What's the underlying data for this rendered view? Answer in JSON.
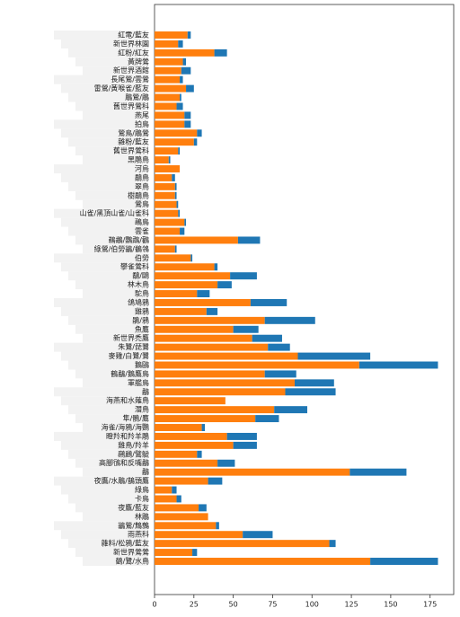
{
  "chart_data": {
    "type": "stacked-barh",
    "categories": [
      "紅電/藍友",
      "新世界林園",
      "紅粉/紅友",
      "黃牌鶯",
      "新世界酒館",
      "長尾鶯/雲鶯",
      "雷鶯/黃喉雀/藍友",
      "鵰鶯/鵰",
      "舊世界鶯科",
      "燕尾",
      "拍鳥",
      "鶯鳥/鵰鶯",
      "雜粉/藍友",
      "舊世界鶯科",
      "黑鵰鳥",
      "河烏",
      "鷸鳥",
      "翠鳥",
      "樹鷸鳥",
      "鶯鳥",
      "山雀/黑頂山雀/山雀科",
      "鵐鳥",
      "雲雀",
      "鵜鶘/鸚鵡/鸛",
      "綠鶯/伯勞鶲/鶺鴒",
      "伯勞",
      "攀雀鶯科",
      "鷸/鷗",
      "林木鳥",
      "駝鳥",
      "鴿鳩鴉",
      "雞鴉",
      "鵑/鴉",
      "魚鷹",
      "新世界禿鷹",
      "朱鷺/琵鷺",
      "麥雞/白鷺/鷺",
      "鵝鷗",
      "鶴鷸/鵝鷹鳥",
      "軍艦鳥",
      "鷸",
      "海燕和水薙鳥",
      "潛鳥",
      "隼/鶻/鷹",
      "海雀/海鴉/海鸚",
      "瞪羚和羚羊鵰",
      "雞鳥/羚羊",
      "鸊鷉/鷿鷈",
      "高腳鴴和反嘴鷸",
      "鷸",
      "夜鷹/水鵰/鵲頭鷹",
      "綠鳥",
      "卡鳥",
      "夜鷹/藍友",
      "林鵰",
      "鶲鶯/鷦鷯",
      "雨燕科",
      "雜料/松鴉/藍友",
      "新世界鶯鶯",
      "鶴/鷺/水鳥"
    ],
    "series": [
      {
        "color": "#ff7f0e",
        "values": [
          21,
          15,
          38,
          18,
          17,
          16,
          20,
          16,
          14,
          19,
          19,
          27,
          25,
          15,
          9,
          16,
          11,
          13,
          13,
          14,
          15,
          19,
          16,
          53,
          13,
          23,
          38,
          48,
          40,
          27,
          61,
          33,
          70,
          50,
          62,
          72,
          91,
          130,
          70,
          89,
          83,
          45,
          76,
          64,
          30,
          46,
          50,
          27,
          40,
          124,
          34,
          11,
          14,
          28,
          34,
          39,
          56,
          111,
          24,
          137
        ]
      },
      {
        "color": "#1f77b4",
        "values": [
          2,
          3,
          8,
          2,
          6,
          2,
          5,
          1,
          4,
          4,
          4,
          3,
          2,
          1,
          1,
          0,
          2,
          1,
          1,
          1,
          1,
          1,
          3,
          14,
          1,
          1,
          2,
          17,
          9,
          8,
          23,
          7,
          32,
          16,
          19,
          14,
          46,
          50,
          20,
          25,
          32,
          0,
          21,
          15,
          2,
          19,
          15,
          3,
          11,
          36,
          9,
          3,
          3,
          5,
          0,
          2,
          19,
          4,
          3,
          43
        ]
      }
    ],
    "xlim": [
      0,
      190
    ],
    "xticks": [
      0,
      25,
      50,
      75,
      100,
      125,
      150,
      175
    ]
  }
}
